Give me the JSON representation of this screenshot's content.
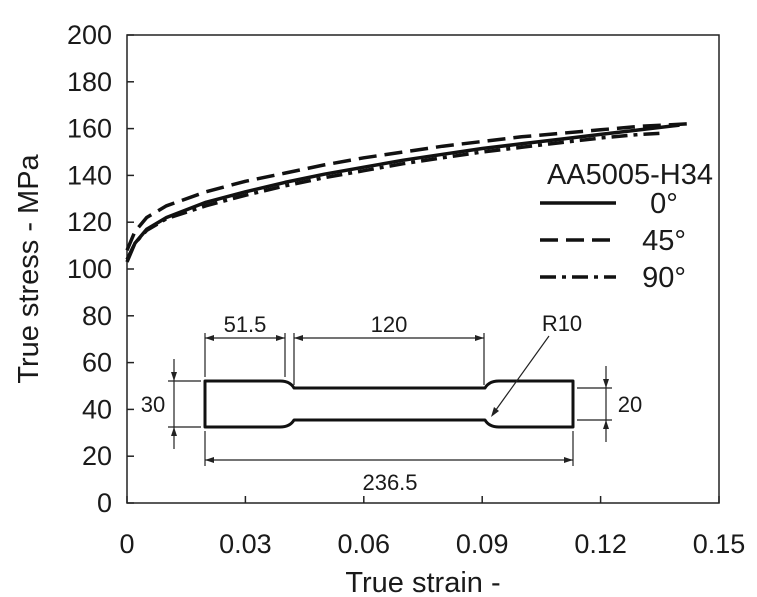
{
  "chart_data": {
    "type": "line",
    "xlabel": "True strain -",
    "ylabel": "True stress - MPa",
    "xlim": [
      0,
      0.15
    ],
    "ylim": [
      0,
      200
    ],
    "x_ticks": [
      "0",
      "0.03",
      "0.06",
      "0.09",
      "0.12",
      "0.15"
    ],
    "y_ticks": [
      "0",
      "20",
      "40",
      "60",
      "80",
      "100",
      "120",
      "140",
      "160",
      "180",
      "200"
    ],
    "grid": false,
    "legend": {
      "title": "AA5005-H34",
      "position": "right"
    },
    "series": [
      {
        "name": "0°",
        "dash": "solid",
        "x": [
          0,
          0.002,
          0.005,
          0.01,
          0.02,
          0.03,
          0.04,
          0.05,
          0.06,
          0.07,
          0.08,
          0.09,
          0.1,
          0.11,
          0.12,
          0.13,
          0.14
        ],
        "y": [
          103,
          111,
          117,
          122,
          128.5,
          133,
          137,
          140.5,
          143.5,
          146.5,
          149,
          151.5,
          153.5,
          155.5,
          157.5,
          159.5,
          161.5
        ]
      },
      {
        "name": "45°",
        "dash": "dashed",
        "x": [
          0,
          0.002,
          0.005,
          0.01,
          0.02,
          0.03,
          0.04,
          0.05,
          0.06,
          0.07,
          0.08,
          0.09,
          0.1,
          0.11,
          0.12,
          0.13,
          0.142
        ],
        "y": [
          108,
          116,
          122,
          127,
          133,
          137.5,
          141,
          144.5,
          147.5,
          150,
          152.5,
          154.5,
          156.5,
          158,
          159.5,
          161,
          162
        ]
      },
      {
        "name": "90°",
        "dash": "dashdot",
        "x": [
          0,
          0.002,
          0.005,
          0.01,
          0.02,
          0.03,
          0.04,
          0.05,
          0.06,
          0.07,
          0.08,
          0.09,
          0.1,
          0.11,
          0.12,
          0.13,
          0.135
        ],
        "y": [
          104,
          111,
          116.5,
          121.5,
          127,
          131.5,
          135.5,
          139,
          142,
          145,
          147.5,
          150,
          152,
          154,
          156,
          157.5,
          158
        ]
      }
    ],
    "inset": {
      "dimensions": {
        "grip_length": "51.5",
        "gauge_length": "120",
        "fillet_radius": "R10",
        "grip_width": "30",
        "gauge_width": "20",
        "total_length": "236.5"
      }
    }
  }
}
